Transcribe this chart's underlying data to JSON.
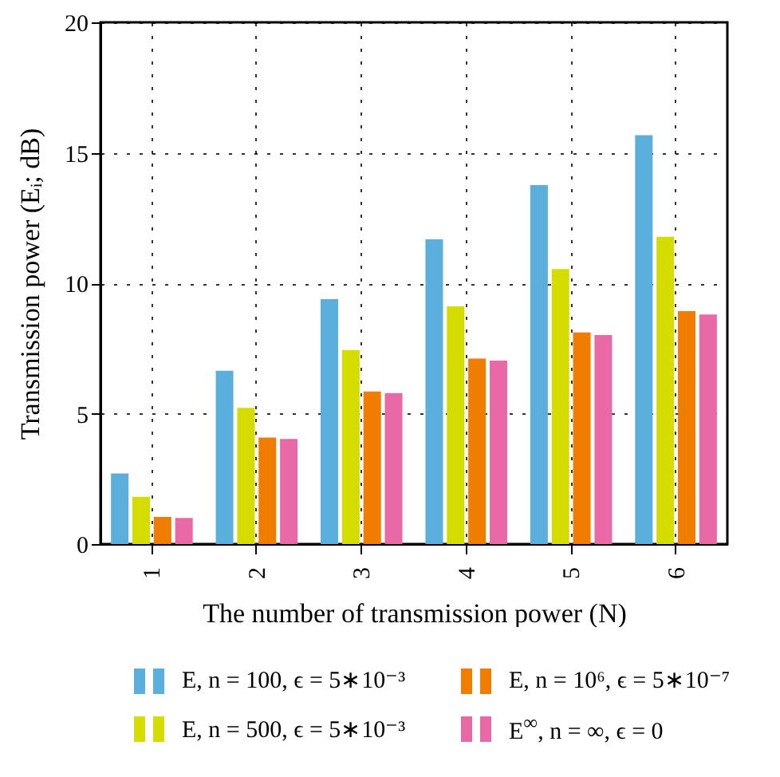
{
  "chart_data": {
    "type": "bar",
    "xlabel": "The number of transmission power (N)",
    "ylabel": "Transmission power (Eᵢ; dB)",
    "categories": [
      "1",
      "2",
      "3",
      "4",
      "5",
      "6"
    ],
    "series": [
      {
        "name": "E, n = 100, ϵ = 5∗10⁻³",
        "color": "#5aafdc",
        "values": [
          2.71,
          6.64,
          9.39,
          11.68,
          13.76,
          15.67
        ]
      },
      {
        "name": "E, n = 500, ϵ = 5∗10⁻³",
        "color": "#d4dc00",
        "values": [
          1.81,
          5.22,
          7.44,
          9.11,
          10.54,
          11.78
        ]
      },
      {
        "name": "E, n = 10⁶, ϵ = 5∗10⁻⁷",
        "color": "#f07d00",
        "values": [
          1.04,
          4.08,
          5.85,
          7.11,
          8.11,
          8.93
        ]
      },
      {
        "name": "E$^{∞}$, n = ∞, ϵ = 0",
        "color": "#e869a5",
        "values": [
          1.0,
          4.03,
          5.79,
          7.03,
          8.01,
          8.8
        ]
      }
    ],
    "ylim": [
      0,
      20
    ],
    "yticks": [
      0,
      5,
      10,
      15,
      20
    ],
    "grid": true,
    "legend": "bottom"
  }
}
